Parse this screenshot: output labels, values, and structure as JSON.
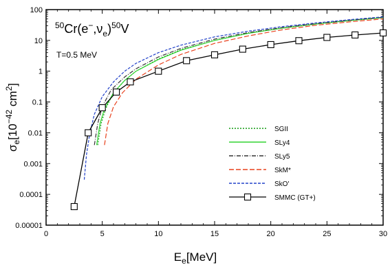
{
  "chart_data": {
    "type": "line",
    "yscale": "log",
    "xlim": [
      0,
      30
    ],
    "ylim": [
      1e-05,
      100
    ],
    "xticks": [
      "0",
      "5",
      "10",
      "15",
      "20",
      "25",
      "30"
    ],
    "yticks": [
      "0.00001",
      "0.0001",
      "0.001",
      "0.01",
      "0.1",
      "1",
      "10",
      "100"
    ],
    "xlabel": {
      "main": "E",
      "sub": "e",
      "tail": "[MeV]"
    },
    "ylabel": {
      "main": "σ",
      "sub": "e",
      "tail": "[10",
      "sup": "−42",
      "tail2": " cm",
      "sup2": "2",
      "tail3": "]"
    },
    "annotations": {
      "reaction": {
        "pre_sup": "50",
        "a": "Cr(e",
        "a_sup": "−",
        "b": ",ν",
        "b_sub": "e",
        "c": ")",
        "post_sup": "50",
        "d": "V"
      },
      "temperature": "T=0.5 MeV"
    },
    "legend_position": "center-right",
    "series": [
      {
        "name": "SGII",
        "color": "#109a10",
        "dash": "2,2",
        "x": [
          4.6,
          4.9,
          5.3,
          6,
          7,
          8,
          10,
          12,
          15,
          18,
          21,
          24,
          27,
          30
        ],
        "y": [
          0.004,
          0.02,
          0.06,
          0.2,
          0.5,
          1.0,
          2.5,
          5,
          10,
          17,
          25,
          34,
          44,
          55
        ]
      },
      {
        "name": "SLy4",
        "color": "#30d430",
        "dash": "",
        "x": [
          4.5,
          4.8,
          5.2,
          6,
          7,
          8,
          10,
          12,
          15,
          18,
          21,
          24,
          27,
          30
        ],
        "y": [
          0.004,
          0.02,
          0.06,
          0.2,
          0.5,
          1.0,
          2.4,
          4.8,
          10,
          17,
          25,
          34,
          44,
          55
        ]
      },
      {
        "name": "SLy5",
        "color": "#333333",
        "dash": "6,2,1,2",
        "x": [
          4.3,
          4.6,
          5.0,
          5.8,
          7,
          8,
          10,
          12,
          15,
          18,
          21,
          24,
          27,
          30
        ],
        "y": [
          0.004,
          0.02,
          0.07,
          0.25,
          0.65,
          1.2,
          2.9,
          5.5,
          11,
          18,
          26,
          35,
          45,
          56
        ]
      },
      {
        "name": "SkM*",
        "color": "#e8401c",
        "dash": "7,3",
        "x": [
          5.2,
          5.5,
          6,
          6.8,
          8,
          10,
          12,
          15,
          18,
          21,
          24,
          27,
          30
        ],
        "y": [
          0.004,
          0.02,
          0.07,
          0.2,
          0.55,
          1.6,
          3.5,
          8,
          14,
          22,
          31,
          40,
          50
        ]
      },
      {
        "name": "SkO'",
        "color": "#2040c8",
        "dash": "4,2",
        "x": [
          3.4,
          3.6,
          3.9,
          4.3,
          5,
          6,
          7,
          8,
          10,
          12,
          15,
          18,
          21,
          24,
          27,
          30
        ],
        "y": [
          0.0003,
          0.002,
          0.01,
          0.04,
          0.15,
          0.45,
          1.0,
          1.8,
          4.0,
          7,
          13,
          20,
          28,
          37,
          47,
          58
        ]
      },
      {
        "name": "SMMC (GT+)",
        "color": "#000000",
        "dash": "",
        "marker": "square",
        "x": [
          2.5,
          3.75,
          5.0,
          6.25,
          7.5,
          10.0,
          12.5,
          15.0,
          17.5,
          20.0,
          22.5,
          25.0,
          27.5,
          30.0
        ],
        "y": [
          4e-05,
          0.01,
          0.065,
          0.21,
          0.45,
          1.0,
          2.2,
          3.4,
          5.2,
          7.3,
          9.8,
          12.5,
          15.0,
          17.5
        ]
      }
    ]
  }
}
